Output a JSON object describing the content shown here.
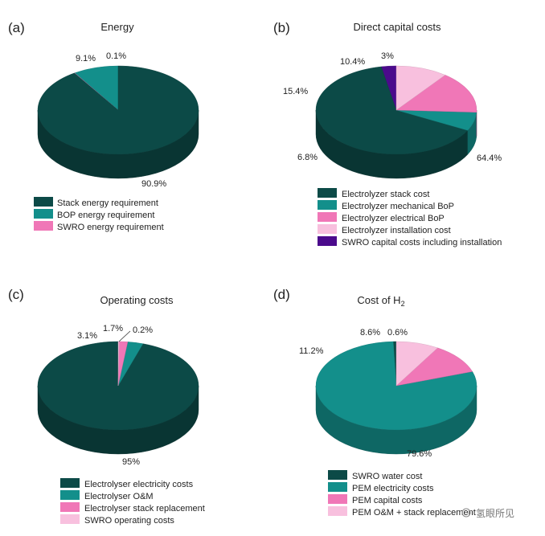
{
  "chart_data": [
    {
      "type": "pie",
      "panel": "(a)",
      "title": "Energy",
      "slices": [
        {
          "label": "Stack energy requirement",
          "value": 90.9,
          "value_label": "90.9%",
          "color": "#0c4a47"
        },
        {
          "label": "BOP energy requirement",
          "value": 9.1,
          "value_label": "9.1%",
          "color": "#138f8b"
        },
        {
          "label": "SWRO energy requirement",
          "value": 0.1,
          "value_label": "0.1%",
          "color": "#f077b7"
        }
      ]
    },
    {
      "type": "pie",
      "panel": "(b)",
      "title": "Direct capital costs",
      "slices": [
        {
          "label": "Electrolyzer stack cost",
          "value": 64.4,
          "value_label": "64.4%",
          "color": "#0c4a47"
        },
        {
          "label": "Electrolyzer mechanical BoP",
          "value": 6.8,
          "value_label": "6.8%",
          "color": "#138f8b"
        },
        {
          "label": "Electrolyzer electrical BoP",
          "value": 15.4,
          "value_label": "15.4%",
          "color": "#f077b7"
        },
        {
          "label": "Electrolyzer installation cost",
          "value": 10.4,
          "value_label": "10.4%",
          "color": "#f8c0de"
        },
        {
          "label": "SWRO capital costs including installation",
          "value": 3,
          "value_label": "3%",
          "color": "#4b0a8c"
        }
      ]
    },
    {
      "type": "pie",
      "panel": "(c)",
      "title": "Operating costs",
      "slices": [
        {
          "label": "Electrolyser electricity costs",
          "value": 95,
          "value_label": "95%",
          "color": "#0c4a47"
        },
        {
          "label": "Electrolyser O&M",
          "value": 3.1,
          "value_label": "3.1%",
          "color": "#138f8b"
        },
        {
          "label": "Electrolyser stack replacement",
          "value": 1.7,
          "value_label": "1.7%",
          "color": "#f077b7"
        },
        {
          "label": "SWRO operating costs",
          "value": 0.2,
          "value_label": "0.2%",
          "color": "#f8c0de"
        }
      ]
    },
    {
      "type": "pie",
      "panel": "(d)",
      "title": "Cost of H",
      "title_subscript": "2",
      "slices": [
        {
          "label": "SWRO water cost",
          "value": 0.6,
          "value_label": "0.6%",
          "color": "#0c4a47"
        },
        {
          "label": "PEM electricity costs",
          "value": 79.6,
          "value_label": "79.6%",
          "color": "#138f8b"
        },
        {
          "label": "PEM capital costs",
          "value": 11.2,
          "value_label": "11.2%",
          "color": "#f077b7"
        },
        {
          "label": "PEM O&M + stack replacement",
          "value": 8.6,
          "value_label": "8.6%",
          "color": "#f8c0de"
        }
      ]
    }
  ],
  "watermark": {
    "text": "氢眼所见"
  }
}
